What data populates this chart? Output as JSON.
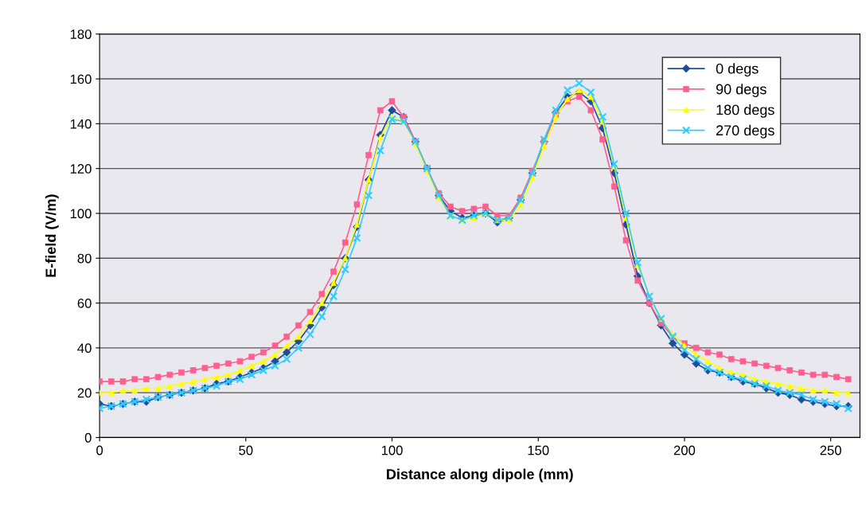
{
  "chart_data": {
    "type": "line",
    "xlabel": "Distance along dipole (mm)",
    "ylabel": "E-field (V/m)",
    "x": [
      0,
      4,
      8,
      12,
      16,
      20,
      24,
      28,
      32,
      36,
      40,
      44,
      48,
      52,
      56,
      60,
      64,
      68,
      72,
      76,
      80,
      84,
      88,
      92,
      96,
      100,
      104,
      108,
      112,
      116,
      120,
      124,
      128,
      132,
      136,
      140,
      144,
      148,
      152,
      156,
      160,
      164,
      168,
      172,
      176,
      180,
      184,
      188,
      192,
      196,
      200,
      204,
      208,
      212,
      216,
      220,
      224,
      228,
      232,
      236,
      240,
      244,
      248,
      252,
      256
    ],
    "series": [
      {
        "name": "0 degs",
        "color": "#1f4e99",
        "marker": "diamond",
        "values": [
          15,
          14,
          15,
          16,
          16,
          18,
          19,
          20,
          21,
          22,
          24,
          25,
          27,
          29,
          31,
          34,
          38,
          43,
          50,
          58,
          68,
          80,
          94,
          115,
          135,
          146,
          143,
          132,
          120,
          108,
          101,
          98,
          99,
          100,
          96,
          98,
          106,
          118,
          132,
          145,
          152,
          154,
          150,
          138,
          118,
          95,
          72,
          60,
          50,
          42,
          37,
          33,
          30,
          29,
          27,
          25,
          24,
          22,
          20,
          19,
          17,
          16,
          15,
          14,
          14
        ]
      },
      {
        "name": "90 degs",
        "color": "#ff5f8f",
        "marker": "square",
        "values": [
          25,
          25,
          25,
          26,
          26,
          27,
          28,
          29,
          30,
          31,
          32,
          33,
          34,
          36,
          38,
          41,
          45,
          50,
          56,
          64,
          74,
          87,
          104,
          126,
          146,
          150,
          143,
          132,
          120,
          109,
          103,
          101,
          102,
          103,
          99,
          99,
          107,
          119,
          132,
          144,
          150,
          152,
          146,
          133,
          112,
          88,
          70,
          60,
          51,
          45,
          42,
          40,
          38,
          37,
          35,
          34,
          33,
          32,
          31,
          30,
          29,
          28,
          28,
          27,
          26
        ]
      },
      {
        "name": "180 degs",
        "color": "#ffff00",
        "marker": "triangle",
        "values": [
          20,
          20,
          21,
          21,
          22,
          22,
          23,
          24,
          25,
          26,
          27,
          28,
          30,
          32,
          34,
          37,
          41,
          45,
          52,
          60,
          69,
          80,
          95,
          115,
          134,
          143,
          141,
          131,
          119,
          107,
          99,
          97,
          98,
          100,
          97,
          97,
          104,
          116,
          130,
          143,
          151,
          155,
          152,
          141,
          121,
          98,
          77,
          63,
          53,
          46,
          41,
          37,
          34,
          31,
          29,
          28,
          26,
          25,
          24,
          23,
          22,
          21,
          21,
          20,
          20
        ]
      },
      {
        "name": "270 degs",
        "color": "#33ccff",
        "marker": "cross",
        "values": [
          13,
          14,
          15,
          16,
          17,
          18,
          19,
          20,
          21,
          22,
          23,
          25,
          26,
          28,
          30,
          32,
          35,
          40,
          46,
          54,
          63,
          75,
          89,
          108,
          128,
          142,
          141,
          132,
          120,
          108,
          99,
          97,
          99,
          100,
          97,
          98,
          106,
          118,
          133,
          146,
          155,
          158,
          154,
          143,
          122,
          100,
          78,
          63,
          53,
          45,
          39,
          35,
          31,
          29,
          27,
          26,
          24,
          23,
          21,
          20,
          19,
          17,
          16,
          15,
          13
        ]
      }
    ],
    "xlim": [
      0,
      260
    ],
    "xticks": [
      0,
      50,
      100,
      150,
      200,
      250
    ],
    "ylim": [
      0,
      180
    ],
    "yticks": [
      0,
      20,
      40,
      60,
      80,
      100,
      120,
      140,
      160,
      180
    ],
    "grid": "y",
    "legend": "top right",
    "line_style": "solid"
  }
}
